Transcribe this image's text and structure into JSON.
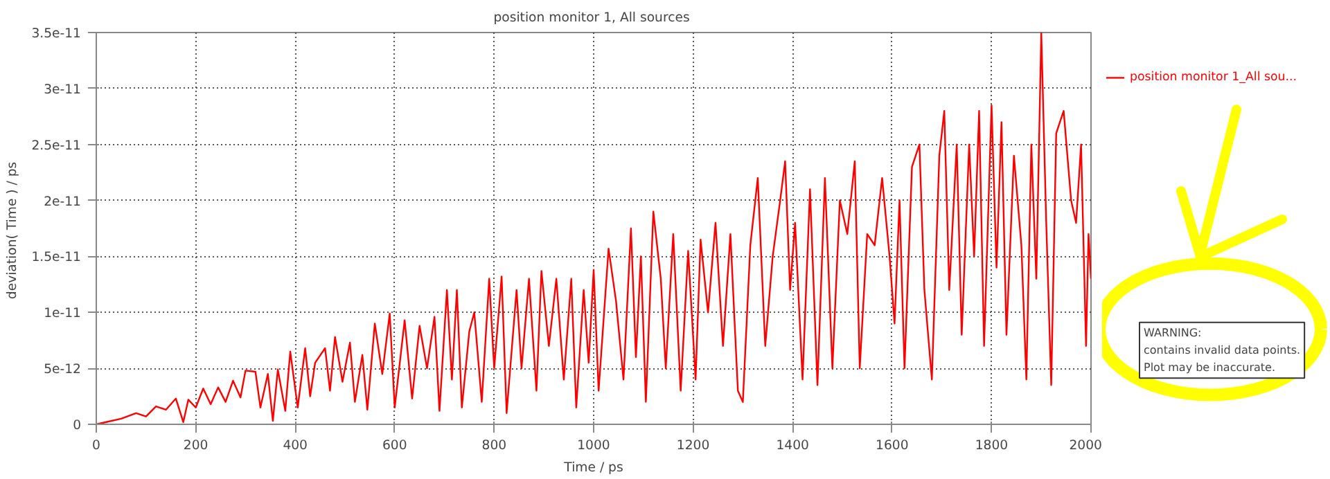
{
  "chart_data": {
    "type": "line",
    "title": "position  monitor 1, All sources",
    "xlabel": "Time / ps",
    "ylabel": "deviation( Time  ) / ps",
    "x": [
      0,
      20,
      50,
      80,
      100,
      120,
      140,
      160,
      175,
      185,
      200,
      215,
      230,
      245,
      260,
      275,
      290,
      300,
      320,
      330,
      345,
      355,
      365,
      380,
      390,
      405,
      420,
      430,
      440,
      460,
      470,
      480,
      495,
      510,
      520,
      535,
      545,
      560,
      575,
      590,
      600,
      620,
      635,
      650,
      665,
      680,
      690,
      705,
      715,
      725,
      735,
      750,
      760,
      775,
      790,
      800,
      815,
      825,
      845,
      855,
      870,
      885,
      895,
      910,
      925,
      940,
      955,
      965,
      980,
      990,
      1000,
      1010,
      1030,
      1045,
      1060,
      1075,
      1085,
      1095,
      1105,
      1120,
      1135,
      1145,
      1160,
      1175,
      1190,
      1205,
      1215,
      1230,
      1245,
      1260,
      1275,
      1290,
      1300,
      1315,
      1330,
      1345,
      1360,
      1375,
      1385,
      1395,
      1405,
      1420,
      1435,
      1450,
      1465,
      1480,
      1495,
      1510,
      1525,
      1535,
      1550,
      1565,
      1580,
      1595,
      1605,
      1615,
      1625,
      1640,
      1655,
      1665,
      1680,
      1695,
      1705,
      1715,
      1730,
      1740,
      1755,
      1765,
      1775,
      1785,
      1800,
      1810,
      1820,
      1830,
      1845,
      1860,
      1870,
      1880,
      1890,
      1900,
      1910,
      1920,
      1930,
      1945,
      1960,
      1970,
      1980,
      1990,
      1995,
      2000
    ],
    "series": [
      {
        "name": "position  monitor 1_All sou...",
        "color": "#ff0000",
        "values": [
          0,
          2e-13,
          5e-13,
          1e-12,
          7e-13,
          1.6e-12,
          1.3e-12,
          2.3e-12,
          2e-13,
          2.2e-12,
          1.5e-12,
          3.2e-12,
          1.8e-12,
          3.3e-12,
          2e-12,
          3.9e-12,
          2.4e-12,
          4.8e-12,
          4.7e-12,
          1.5e-12,
          4.5e-12,
          3e-13,
          4.9e-12,
          1.2e-12,
          6.5e-12,
          1.5e-12,
          6.8e-12,
          2.5e-12,
          5.5e-12,
          6.8e-12,
          3e-12,
          7.8e-12,
          3.8e-12,
          7.3e-12,
          2e-12,
          6.2e-12,
          1.3e-12,
          9e-12,
          4.5e-12,
          9.9e-12,
          1.5e-12,
          9.3e-12,
          2.3e-12,
          8.8e-12,
          5e-12,
          9.6e-12,
          1.2e-12,
          1.2e-11,
          4e-12,
          1.2e-11,
          1.5e-12,
          8.3e-12,
          1e-11,
          2e-12,
          1.3e-11,
          5e-12,
          1.32e-11,
          1e-12,
          1.2e-11,
          5e-12,
          1.3e-11,
          3e-12,
          1.37e-11,
          7e-12,
          1.3e-11,
          4e-12,
          1.3e-11,
          1.5e-12,
          1.2e-11,
          5.5e-12,
          1.38e-11,
          3e-12,
          1.57e-11,
          1.1e-11,
          4e-12,
          1.75e-11,
          6e-12,
          1.5e-11,
          2e-12,
          1.9e-11,
          1.3e-11,
          5e-12,
          1.7e-11,
          3e-12,
          1.55e-11,
          4e-12,
          1.65e-11,
          1e-11,
          1.8e-11,
          7e-12,
          1.7e-11,
          3e-12,
          2e-12,
          1.6e-11,
          2.2e-11,
          7e-12,
          1.5e-11,
          2e-11,
          2.35e-11,
          1.2e-11,
          1.8e-11,
          4e-12,
          2.1e-11,
          3.5e-12,
          2.2e-11,
          5e-12,
          2e-11,
          1.7e-11,
          2.35e-11,
          5e-12,
          1.7e-11,
          1.6e-11,
          2.2e-11,
          1.5e-11,
          9e-12,
          2e-11,
          5e-12,
          2.3e-11,
          2.5e-11,
          1.2e-11,
          4e-12,
          2.4e-11,
          2.8e-11,
          1.2e-11,
          2.5e-11,
          8e-12,
          2.5e-11,
          1.5e-11,
          2.8e-11,
          7e-12,
          2.85e-11,
          1.4e-11,
          2.7e-11,
          8e-12,
          2.4e-11,
          1.6e-11,
          4e-12,
          2.5e-11,
          1.3e-11,
          3.5e-11,
          1.8e-11,
          3.5e-12,
          2.6e-11,
          2.8e-11,
          2e-11,
          1.8e-11,
          2.5e-11,
          7e-12,
          1.7e-11,
          1.3e-11
        ]
      }
    ],
    "xlim": [
      0,
      2000
    ],
    "xticks": [
      0,
      200,
      400,
      600,
      800,
      1000,
      1200,
      1400,
      1600,
      1800,
      2000
    ],
    "ylim": [
      0,
      3.5e-11
    ],
    "yticks": [
      {
        "value": 0,
        "label": "0"
      },
      {
        "value": 5e-12,
        "label": "5e-12"
      },
      {
        "value": 1e-11,
        "label": "1e-11"
      },
      {
        "value": 1.5e-11,
        "label": "1.5e-11"
      },
      {
        "value": 2e-11,
        "label": "2e-11"
      },
      {
        "value": 2.5e-11,
        "label": "2.5e-11"
      },
      {
        "value": 3e-11,
        "label": "3e-11"
      },
      {
        "value": 3.5e-11,
        "label": "3.5e-11"
      }
    ],
    "grid": true,
    "legend": "top right",
    "line_style": "solid",
    "marker": "none",
    "annotations": [
      "WARNING:\ncontains invalid data points.\nPlot may be inaccurate."
    ]
  }
}
